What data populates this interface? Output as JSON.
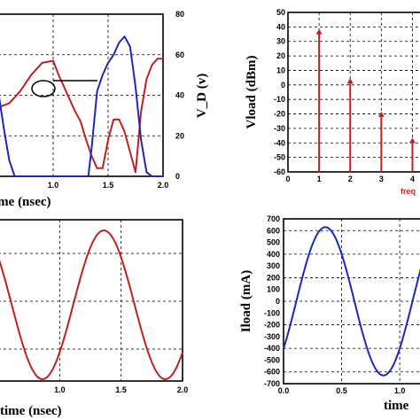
{
  "chart_data": [
    {
      "type": "line",
      "panel": "top-left",
      "xlabel": "time (nsec)",
      "xlim": [
        0.5,
        2.0
      ],
      "x_ticks": [
        "1.0",
        "1.5",
        "2.0"
      ],
      "y2label": "V_D (v)",
      "y2lim": [
        0,
        80
      ],
      "y2_ticks": [
        "80",
        "60",
        "40",
        "20",
        "0"
      ],
      "series": [
        {
          "color": "#c02020",
          "x": [
            0.5,
            0.6,
            0.7,
            0.8,
            0.9,
            1.0,
            1.05,
            1.1,
            1.15,
            1.2,
            1.25,
            1.3,
            1.35,
            1.4,
            1.45,
            1.5,
            1.55,
            1.6,
            1.65,
            1.7,
            1.75,
            1.8,
            1.85,
            1.9,
            1.95,
            2.0
          ],
          "y": [
            34,
            36,
            42,
            50,
            56,
            57,
            50,
            44,
            38,
            32,
            27,
            18,
            10,
            4,
            4,
            18,
            28,
            28,
            22,
            12,
            2,
            32,
            48,
            55,
            58,
            58
          ]
        },
        {
          "color": "#1a2ab8",
          "x": [
            0.5,
            0.55,
            0.6,
            0.65,
            0.7,
            0.8,
            1.0,
            1.2,
            1.32,
            1.35,
            1.4,
            1.45,
            1.5,
            1.55,
            1.6,
            1.65,
            1.7,
            1.75,
            1.8,
            1.85,
            1.9,
            2.0
          ],
          "y": [
            42,
            24,
            8,
            0,
            0,
            0,
            0,
            0,
            0,
            14,
            42,
            50,
            56,
            60,
            66,
            69,
            64,
            44,
            18,
            2,
            0,
            0
          ]
        }
      ],
      "annotation": "ellipse marker with pointer line near t ≈ 1.05"
    },
    {
      "type": "bar",
      "panel": "top-right",
      "ylabel": "Vload (dBm)",
      "ylim": [
        -60,
        50
      ],
      "y_ticks": [
        "50",
        "40",
        "30",
        "20",
        "10",
        "0",
        "-10",
        "-20",
        "-30",
        "-40",
        "-50",
        "-60"
      ],
      "xlim": [
        0,
        4.3
      ],
      "x_ticks": [
        "0",
        "1",
        "2",
        "3",
        "4"
      ],
      "xlabel_fragment": "freq",
      "bar_color": "#c02020",
      "categories": [
        1,
        2,
        3,
        4
      ],
      "values": [
        38,
        4,
        -19,
        -37
      ]
    },
    {
      "type": "line",
      "panel": "bottom-left",
      "xlabel": "time (nsec)",
      "xlim": [
        0.5,
        2.0
      ],
      "x_ticks": [
        "1.0",
        "1.5",
        "2.0"
      ],
      "color": "#c02020",
      "waveform": {
        "shape": "sine",
        "peak_time": 1.36,
        "trough_time": 1.86,
        "period": 1.0
      }
    },
    {
      "type": "line",
      "panel": "bottom-right",
      "ylabel": "Iload (mA)",
      "xlabel": "time",
      "ylim": [
        -700,
        700
      ],
      "y_ticks": [
        "700",
        "600",
        "500",
        "400",
        "300",
        "200",
        "100",
        "0",
        "-100",
        "-200",
        "-300",
        "-400",
        "-500",
        "-600",
        "-700"
      ],
      "xlim": [
        0.0,
        1.0
      ],
      "x_ticks": [
        "0.0",
        "0.5",
        "1.0"
      ],
      "color": "#1a2ab8",
      "waveform": {
        "shape": "sine",
        "amplitude": 630,
        "period": 1.0,
        "peak_time": 0.36,
        "offset": 0
      }
    }
  ]
}
